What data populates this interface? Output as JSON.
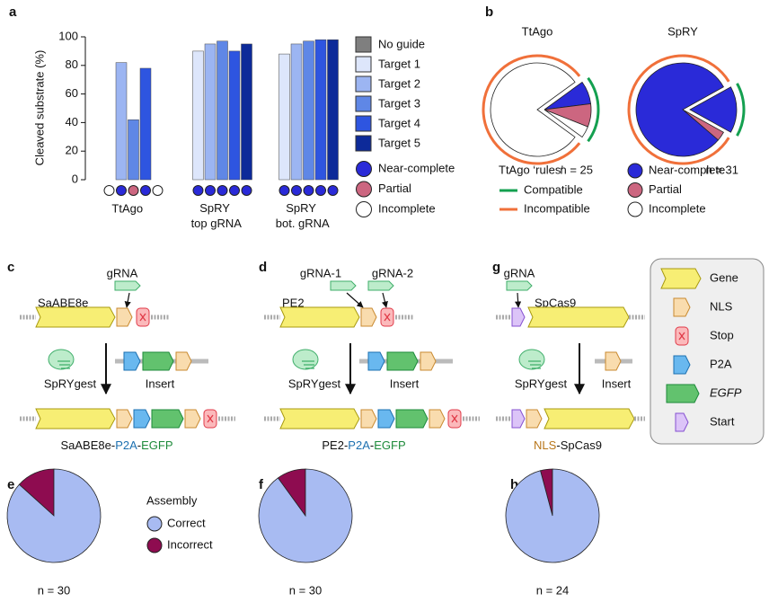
{
  "panel_letters": [
    "a",
    "b",
    "c",
    "d",
    "g",
    "e",
    "f",
    "h"
  ],
  "outcomes": [
    {
      "name": "Near-complete",
      "color": "#2a2ad8"
    },
    {
      "name": "Partial",
      "color": "#cc6680"
    },
    {
      "name": "Incomplete",
      "color": "#ffffff"
    }
  ],
  "rules": {
    "title": "TtAgo ‘rules’",
    "items": [
      {
        "name": "Compatible",
        "color": "#14a050"
      },
      {
        "name": "Incompatible",
        "color": "#f0703a"
      }
    ]
  },
  "assembly": {
    "title": "Assembly",
    "items": [
      {
        "name": "Correct",
        "color": "#a8bbf2"
      },
      {
        "name": "Incorrect",
        "color": "#8e0c50"
      }
    ]
  },
  "chart_data": [
    {
      "type": "bar",
      "ylabel": "Cleaved substrate (%)",
      "categories": [
        "TtAgo",
        "SpRY top gRNA",
        "SpRY bot. gRNA"
      ],
      "series": [
        {
          "name": "No guide",
          "color": "#7f7f7f",
          "values": [
            0,
            0,
            0
          ]
        },
        {
          "name": "Target 1",
          "color": "#dde6fb",
          "values": [
            0,
            90,
            88
          ]
        },
        {
          "name": "Target 2",
          "color": "#9cb5f2",
          "values": [
            82,
            95,
            95
          ]
        },
        {
          "name": "Target 3",
          "color": "#5f87e6",
          "values": [
            42,
            97,
            97
          ]
        },
        {
          "name": "Target 4",
          "color": "#2e55e0",
          "values": [
            78,
            90,
            98
          ]
        },
        {
          "name": "Target 5",
          "color": "#0d2a99",
          "values": [
            0,
            95,
            98
          ]
        }
      ],
      "outcomes": [
        [
          2,
          0,
          1,
          0,
          2
        ],
        [
          0,
          0,
          0,
          0,
          0
        ],
        [
          0,
          0,
          0,
          0,
          0
        ]
      ],
      "ylim": [
        0,
        100
      ],
      "yticks": [
        0,
        20,
        40,
        60,
        80,
        100
      ]
    },
    {
      "type": "pie",
      "title": "TtAgo",
      "n_label": "n = 25",
      "slices": [
        {
          "value": 2,
          "outcome": 0,
          "rule": 0
        },
        {
          "value": 2,
          "outcome": 1,
          "rule": 0
        },
        {
          "value": 1,
          "outcome": 2,
          "rule": 0
        },
        {
          "value": 20,
          "outcome": 2,
          "rule": 1
        }
      ]
    },
    {
      "type": "pie",
      "title": "SpRY",
      "n_label": "n = 31",
      "slices": [
        {
          "value": 5,
          "outcome": 0,
          "rule": 0
        },
        {
          "value": 1,
          "outcome": 1,
          "rule": 1
        },
        {
          "value": 25,
          "outcome": 0,
          "rule": 1
        }
      ]
    },
    {
      "type": "pie",
      "n_label": "n = 30",
      "slices": [
        {
          "value": 4,
          "assembly": 1
        },
        {
          "value": 26,
          "assembly": 0
        }
      ]
    },
    {
      "type": "pie",
      "n_label": "n = 30",
      "slices": [
        {
          "value": 3,
          "assembly": 1
        },
        {
          "value": 27,
          "assembly": 0
        }
      ]
    },
    {
      "type": "pie",
      "n_label": "n = 24",
      "slices": [
        {
          "value": 1,
          "assembly": 1
        },
        {
          "value": 23,
          "assembly": 0
        }
      ]
    }
  ],
  "diagrams": [
    {
      "grna": [
        "gRNA"
      ],
      "gene": "SaABE8e",
      "enzyme": "SpRYgest",
      "insert": "Insert",
      "product": [
        "SaABE8e",
        "-",
        "P2A",
        "-",
        "EGFP"
      ]
    },
    {
      "grna": [
        "gRNA-1",
        "gRNA-2"
      ],
      "gene": "PE2",
      "enzyme": "SpRYgest",
      "insert": "Insert",
      "product": [
        "PE2",
        "-",
        "P2A",
        "-",
        "EGFP"
      ]
    },
    {
      "grna": [
        "gRNA"
      ],
      "gene": "SpCas9",
      "enzyme": "SpRYgest",
      "insert": "Insert",
      "product": [
        "NLS",
        "-",
        "SpCas9"
      ]
    }
  ],
  "feature_legend": [
    "Gene",
    "NLS",
    "Stop",
    "P2A",
    "EGFP",
    "Start"
  ]
}
